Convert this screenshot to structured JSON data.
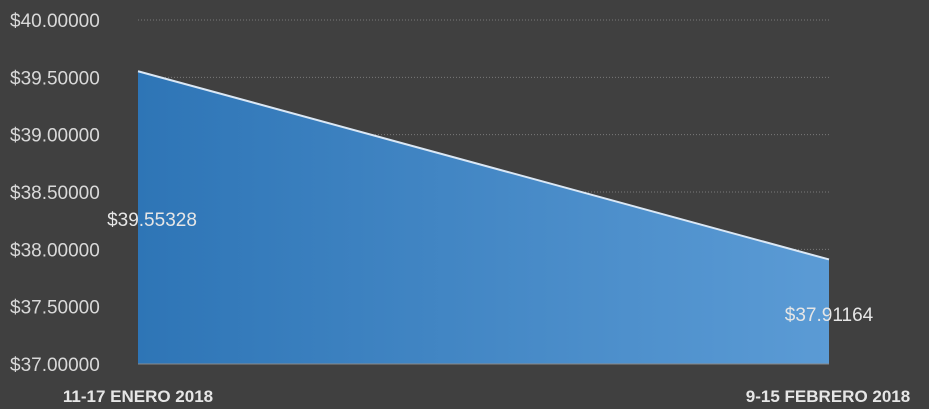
{
  "chart_data": {
    "type": "area",
    "categories": [
      "11-17 ENERO 2018",
      "9-15 FEBRERO 2018"
    ],
    "series": [
      {
        "values": [
          39.55328,
          37.91164
        ],
        "data_labels": [
          "$39.55328",
          "$37.91164"
        ]
      }
    ],
    "ylim": [
      37.0,
      40.0
    ],
    "yticks": [
      37.0,
      37.5,
      38.0,
      38.5,
      39.0,
      39.5,
      40.0
    ],
    "ytick_labels": [
      "$37.00000",
      "$37.50000",
      "$38.00000",
      "$38.50000",
      "$39.00000",
      "$39.50000",
      "$40.00000"
    ],
    "grid": true,
    "legend": "none",
    "colors": {
      "background": "#404040",
      "fill_start": "#2e75b6",
      "fill_end": "#5b9bd5",
      "line": "#dbe8f5",
      "grid": "#7a7a7a",
      "text": "#d9d9d9"
    }
  }
}
